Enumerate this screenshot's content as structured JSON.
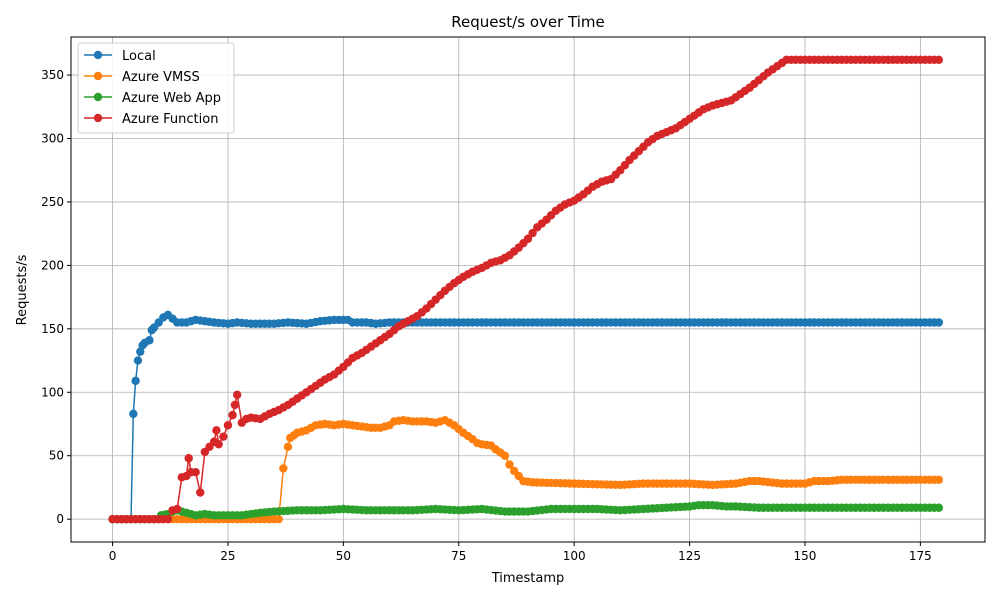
{
  "chart_data": {
    "type": "line",
    "title": "Request/s over Time",
    "xlabel": "Timestamp",
    "ylabel": "Requests/s",
    "xlim": [
      -9,
      189
    ],
    "ylim": [
      -18,
      380
    ],
    "xticks": [
      0,
      25,
      50,
      75,
      100,
      125,
      150,
      175
    ],
    "yticks": [
      0,
      50,
      100,
      150,
      200,
      250,
      300,
      350
    ],
    "grid": true,
    "legend_position": "top-left",
    "series": [
      {
        "name": "Local",
        "color": "#1f77b4",
        "points": [
          [
            0,
            0
          ],
          [
            2,
            0
          ],
          [
            4,
            0
          ],
          [
            4.5,
            83
          ],
          [
            5,
            109
          ],
          [
            5.5,
            125
          ],
          [
            6,
            132
          ],
          [
            6.5,
            137
          ],
          [
            7,
            139
          ],
          [
            8,
            141
          ],
          [
            8.5,
            149
          ],
          [
            9,
            151
          ],
          [
            10,
            155
          ],
          [
            11,
            159
          ],
          [
            12,
            161
          ],
          [
            13,
            158
          ],
          [
            14,
            155
          ],
          [
            16,
            155
          ],
          [
            18,
            157
          ],
          [
            20,
            156
          ],
          [
            22,
            155
          ],
          [
            25,
            154
          ],
          [
            27,
            155
          ],
          [
            30,
            154
          ],
          [
            35,
            154
          ],
          [
            38,
            155
          ],
          [
            42,
            154
          ],
          [
            45,
            156
          ],
          [
            48,
            157
          ],
          [
            51,
            157
          ],
          [
            52,
            155
          ],
          [
            55,
            155
          ],
          [
            57,
            154
          ],
          [
            60,
            155
          ],
          [
            65,
            155
          ],
          [
            70,
            155
          ],
          [
            80,
            155
          ],
          [
            100,
            155
          ],
          [
            120,
            155
          ],
          [
            140,
            155
          ],
          [
            160,
            155
          ],
          [
            179,
            155
          ]
        ]
      },
      {
        "name": "Azure VMSS",
        "color": "#ff7f0e",
        "points": [
          [
            0,
            0
          ],
          [
            10,
            0
          ],
          [
            20,
            0
          ],
          [
            30,
            0
          ],
          [
            36,
            0
          ],
          [
            37,
            40
          ],
          [
            38,
            57
          ],
          [
            38.5,
            64
          ],
          [
            40,
            68
          ],
          [
            42,
            70
          ],
          [
            44,
            74
          ],
          [
            46,
            75
          ],
          [
            48,
            74
          ],
          [
            50,
            75
          ],
          [
            52,
            74
          ],
          [
            54,
            73
          ],
          [
            56,
            72
          ],
          [
            58,
            72
          ],
          [
            60,
            74
          ],
          [
            61,
            77
          ],
          [
            63,
            78
          ],
          [
            65,
            77
          ],
          [
            68,
            77
          ],
          [
            70,
            76
          ],
          [
            72,
            78
          ],
          [
            74,
            74
          ],
          [
            76,
            68
          ],
          [
            78,
            63
          ],
          [
            79,
            60
          ],
          [
            80,
            59
          ],
          [
            82,
            58
          ],
          [
            83,
            55
          ],
          [
            85,
            50
          ],
          [
            86,
            43
          ],
          [
            87,
            38
          ],
          [
            88,
            34
          ],
          [
            89,
            30
          ],
          [
            91,
            29
          ],
          [
            100,
            28
          ],
          [
            110,
            27
          ],
          [
            115,
            28
          ],
          [
            120,
            28
          ],
          [
            125,
            28
          ],
          [
            130,
            27
          ],
          [
            135,
            28
          ],
          [
            138,
            30
          ],
          [
            140,
            30
          ],
          [
            145,
            28
          ],
          [
            150,
            28
          ],
          [
            152,
            30
          ],
          [
            155,
            30
          ],
          [
            158,
            31
          ],
          [
            160,
            31
          ],
          [
            170,
            31
          ],
          [
            179,
            31
          ]
        ]
      },
      {
        "name": "Azure Web App",
        "color": "#2ca02c",
        "points": [
          [
            0,
            0
          ],
          [
            10,
            0
          ],
          [
            10.5,
            3
          ],
          [
            12,
            4
          ],
          [
            13,
            6
          ],
          [
            14,
            7
          ],
          [
            15,
            6
          ],
          [
            16,
            5
          ],
          [
            18,
            3
          ],
          [
            20,
            4
          ],
          [
            22,
            3
          ],
          [
            25,
            3
          ],
          [
            28,
            3
          ],
          [
            30,
            4
          ],
          [
            32,
            5
          ],
          [
            35,
            6
          ],
          [
            40,
            7
          ],
          [
            45,
            7
          ],
          [
            50,
            8
          ],
          [
            55,
            7
          ],
          [
            60,
            7
          ],
          [
            65,
            7
          ],
          [
            70,
            8
          ],
          [
            75,
            7
          ],
          [
            80,
            8
          ],
          [
            85,
            6
          ],
          [
            90,
            6
          ],
          [
            95,
            8
          ],
          [
            100,
            8
          ],
          [
            105,
            8
          ],
          [
            110,
            7
          ],
          [
            115,
            8
          ],
          [
            120,
            9
          ],
          [
            125,
            10
          ],
          [
            127,
            11
          ],
          [
            130,
            11
          ],
          [
            133,
            10
          ],
          [
            135,
            10
          ],
          [
            140,
            9
          ],
          [
            150,
            9
          ],
          [
            160,
            9
          ],
          [
            170,
            9
          ],
          [
            179,
            9
          ]
        ]
      },
      {
        "name": "Azure Function",
        "color": "#d62728",
        "points": [
          [
            0,
            0
          ],
          [
            2,
            0
          ],
          [
            4,
            0
          ],
          [
            6,
            0
          ],
          [
            8,
            0
          ],
          [
            10,
            0
          ],
          [
            12,
            0
          ],
          [
            13,
            7
          ],
          [
            14,
            8
          ],
          [
            15,
            33
          ],
          [
            16,
            34
          ],
          [
            16.5,
            48
          ],
          [
            17,
            37
          ],
          [
            18,
            37
          ],
          [
            19,
            21
          ],
          [
            20,
            53
          ],
          [
            21,
            57
          ],
          [
            22,
            61
          ],
          [
            22.5,
            70
          ],
          [
            23,
            59
          ],
          [
            24,
            65
          ],
          [
            25,
            74
          ],
          [
            26,
            82
          ],
          [
            26.5,
            90
          ],
          [
            27,
            98
          ],
          [
            28,
            76
          ],
          [
            29,
            79
          ],
          [
            30,
            80
          ],
          [
            32,
            79
          ],
          [
            34,
            83
          ],
          [
            36,
            86
          ],
          [
            38,
            90
          ],
          [
            40,
            95
          ],
          [
            42,
            100
          ],
          [
            44,
            105
          ],
          [
            46,
            110
          ],
          [
            48,
            114
          ],
          [
            50,
            120
          ],
          [
            52,
            127
          ],
          [
            54,
            131
          ],
          [
            56,
            136
          ],
          [
            58,
            141
          ],
          [
            60,
            146
          ],
          [
            62,
            152
          ],
          [
            64,
            156
          ],
          [
            66,
            160
          ],
          [
            68,
            166
          ],
          [
            70,
            173
          ],
          [
            72,
            180
          ],
          [
            74,
            186
          ],
          [
            76,
            191
          ],
          [
            78,
            195
          ],
          [
            80,
            198
          ],
          [
            82,
            202
          ],
          [
            84,
            204
          ],
          [
            86,
            208
          ],
          [
            88,
            214
          ],
          [
            90,
            221
          ],
          [
            92,
            230
          ],
          [
            94,
            236
          ],
          [
            96,
            243
          ],
          [
            98,
            248
          ],
          [
            100,
            251
          ],
          [
            102,
            256
          ],
          [
            104,
            262
          ],
          [
            106,
            266
          ],
          [
            108,
            268
          ],
          [
            110,
            275
          ],
          [
            112,
            283
          ],
          [
            114,
            290
          ],
          [
            116,
            297
          ],
          [
            118,
            302
          ],
          [
            120,
            305
          ],
          [
            122,
            308
          ],
          [
            124,
            313
          ],
          [
            126,
            318
          ],
          [
            128,
            323
          ],
          [
            130,
            326
          ],
          [
            132,
            328
          ],
          [
            134,
            330
          ],
          [
            136,
            335
          ],
          [
            138,
            340
          ],
          [
            140,
            346
          ],
          [
            142,
            352
          ],
          [
            144,
            357
          ],
          [
            146,
            362
          ],
          [
            148,
            362
          ],
          [
            150,
            362
          ],
          [
            155,
            362
          ],
          [
            160,
            362
          ],
          [
            165,
            362
          ],
          [
            170,
            362
          ],
          [
            175,
            362
          ],
          [
            179,
            362
          ]
        ]
      }
    ]
  }
}
